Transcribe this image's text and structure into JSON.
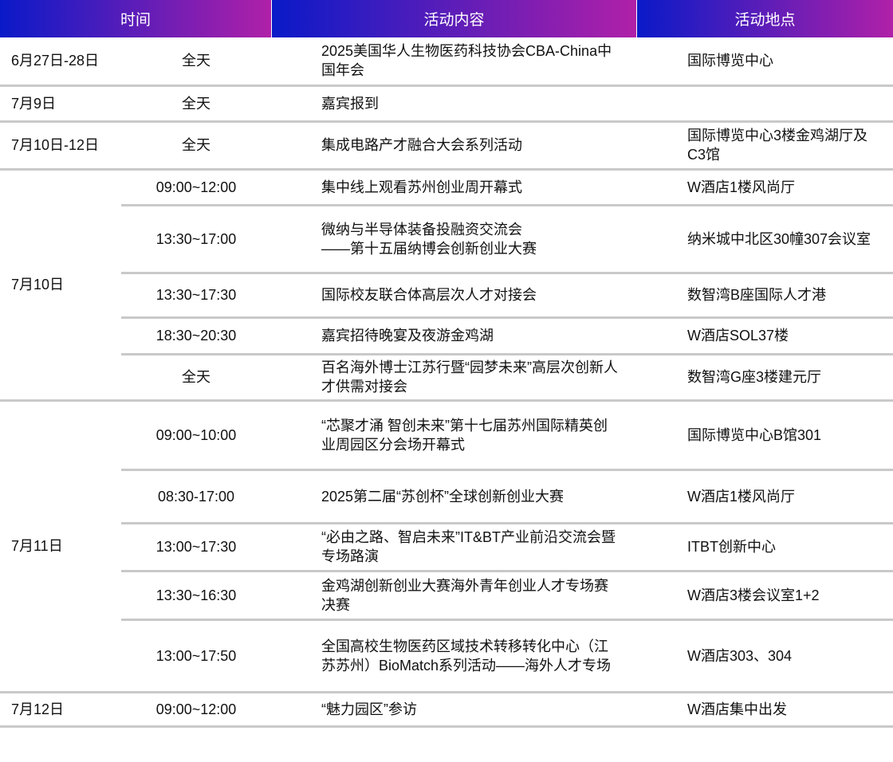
{
  "header": {
    "time": "时间",
    "content": "活动内容",
    "location": "活动地点"
  },
  "colors": {
    "header_gradient_start": "#0a1ac8",
    "header_gradient_end": "#b020a8",
    "divider": "#c9c9c9"
  },
  "groups": [
    {
      "date": "6月27日-28日",
      "rows": [
        {
          "time": "全天",
          "content": "2025美国华人生物医药科技协会CBA-China中国年会",
          "location": "国际博览中心"
        }
      ]
    },
    {
      "date": "7月9日",
      "rows": [
        {
          "time": "全天",
          "content": "嘉宾报到",
          "location": ""
        }
      ]
    },
    {
      "date": "7月10日-12日",
      "rows": [
        {
          "time": "全天",
          "content": "集成电路产才融合大会系列活动",
          "location": "国际博览中心3楼金鸡湖厅及C3馆"
        }
      ]
    },
    {
      "date": "7月10日",
      "rows": [
        {
          "time": "09:00~12:00",
          "content": "集中线上观看苏州创业周开幕式",
          "location": "W酒店1楼风尚厅"
        },
        {
          "time": "13:30~17:00",
          "content": "微纳与半导体装备投融资交流会\n——第十五届纳博会创新创业大赛",
          "location": "纳米城中北区30幢307会议室"
        },
        {
          "time": "13:30~17:30",
          "content": "国际校友联合体高层次人才对接会",
          "location": "数智湾B座国际人才港"
        },
        {
          "time": "18:30~20:30",
          "content": "嘉宾招待晚宴及夜游金鸡湖",
          "location": "W酒店SOL37楼"
        },
        {
          "time": "全天",
          "content": "百名海外博士江苏行暨“园梦未来”高层次创新人才供需对接会",
          "location": "数智湾G座3楼建元厅"
        }
      ]
    },
    {
      "date": "7月11日",
      "rows": [
        {
          "time": "09:00~10:00",
          "content": "“芯聚才涌 智创未来”第十七届苏州国际精英创业周园区分会场开幕式",
          "location": "国际博览中心B馆301"
        },
        {
          "time": "08:30-17:00",
          "content": "2025第二届“苏创杯”全球创新创业大赛",
          "location": "W酒店1楼风尚厅"
        },
        {
          "time": "13:00~17:30",
          "content": "“必由之路、智启未来”IT&BT产业前沿交流会暨专场路演",
          "location": "ITBT创新中心"
        },
        {
          "time": "13:30~16:30",
          "content": "金鸡湖创新创业大赛海外青年创业人才专场赛决赛",
          "location": "W酒店3楼会议室1+2"
        },
        {
          "time": "13:00~17:50",
          "content": "全国高校生物医药区域技术转移转化中心（江苏苏州）BioMatch系列活动——海外人才专场",
          "location": "W酒店303、304"
        }
      ]
    },
    {
      "date": "7月12日",
      "rows": [
        {
          "time": "09:00~12:00",
          "content": "“魅力园区”参访",
          "location": "W酒店集中出发"
        }
      ]
    }
  ]
}
